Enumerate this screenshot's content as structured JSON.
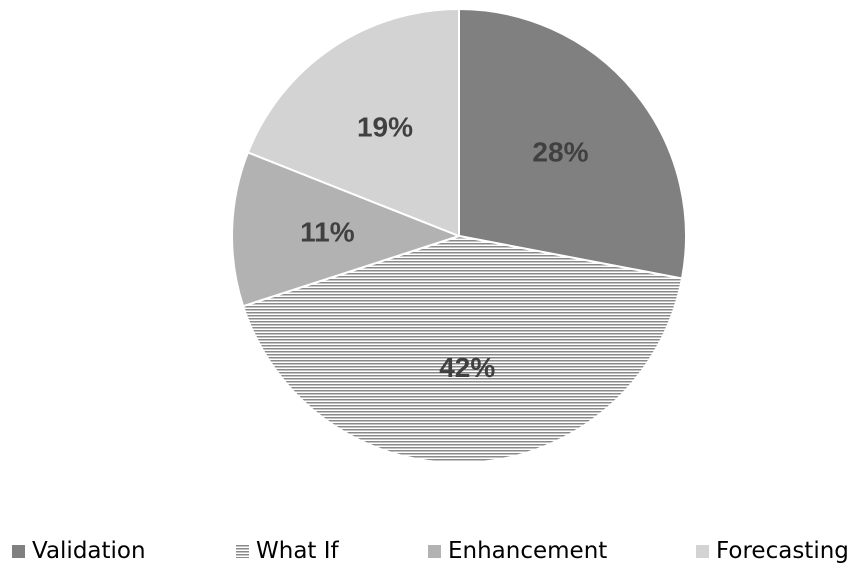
{
  "chart_data": {
    "type": "pie",
    "categories": [
      "Validation",
      "What If",
      "Enhancement",
      "Forecasting"
    ],
    "values": [
      28,
      42,
      11,
      19
    ],
    "labels": [
      "28%",
      "42%",
      "11%",
      "19%"
    ],
    "colors": [
      "#808080",
      "#9a9a9a",
      "#b2b2b2",
      "#d3d3d3"
    ],
    "patterns": [
      "solid",
      "horizontal-lines",
      "solid",
      "solid"
    ],
    "start_angle_deg": 0,
    "direction": "clockwise",
    "legend_position": "bottom"
  },
  "legend": {
    "items": [
      {
        "label": "Validation"
      },
      {
        "label": "What If"
      },
      {
        "label": "Enhancement"
      },
      {
        "label": "Forecasting"
      }
    ]
  }
}
